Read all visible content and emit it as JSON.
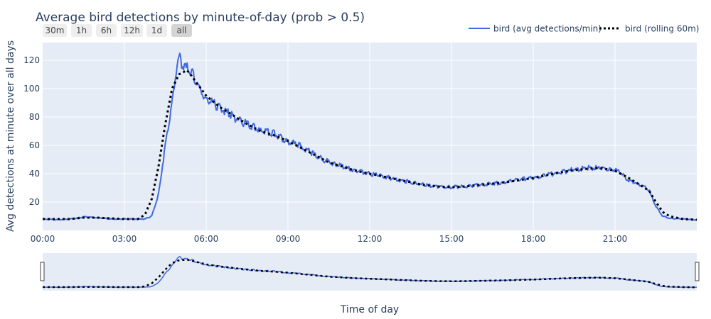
{
  "chart_data": {
    "type": "line",
    "title": "Average bird detections by minute-of-day (prob > 0.5)",
    "xlabel": "Time of day",
    "ylabel": "Avg detections at minute over all days",
    "xlim_hours": [
      0,
      24
    ],
    "ylim": [
      0,
      132.5
    ],
    "x_ticks": [
      "00:00",
      "03:00",
      "06:00",
      "09:00",
      "12:00",
      "15:00",
      "18:00",
      "21:00"
    ],
    "y_ticks": [
      20,
      40,
      60,
      80,
      100,
      120
    ],
    "grid": true,
    "legend_placement": "top-right",
    "range_selector": [
      {
        "label": "30m",
        "active": false
      },
      {
        "label": "1h",
        "active": false
      },
      {
        "label": "6h",
        "active": false
      },
      {
        "label": "12h",
        "active": false
      },
      {
        "label": "1d",
        "active": false
      },
      {
        "label": "all",
        "active": true
      }
    ],
    "series": [
      {
        "name": "bird (avg detections/min)",
        "color": "#4169e1",
        "dash": "solid",
        "x_hours": [
          0,
          0.5,
          1,
          1.5,
          2,
          2.5,
          3,
          3.5,
          3.75,
          4,
          4.25,
          4.5,
          4.75,
          4.92,
          5,
          5.15,
          5.3,
          5.5,
          5.75,
          6,
          6.5,
          7,
          7.5,
          8,
          8.5,
          9,
          9.5,
          10,
          10.5,
          11,
          11.5,
          12,
          12.5,
          13,
          13.5,
          14,
          14.5,
          15,
          15.5,
          16,
          16.5,
          17,
          17.5,
          18,
          18.5,
          19,
          19.5,
          20,
          20.5,
          21,
          21.25,
          21.5,
          22,
          22.25,
          22.5,
          22.75,
          23,
          23.5,
          24
        ],
        "values": [
          8,
          7.5,
          8,
          9.5,
          9,
          8,
          8,
          8,
          8,
          10,
          25,
          60,
          90,
          115,
          122,
          116,
          114,
          110,
          100,
          92,
          87,
          80,
          75,
          70,
          68,
          63,
          59,
          53,
          48,
          45,
          42,
          40,
          38,
          36,
          34,
          32,
          31,
          30.5,
          31,
          32,
          33,
          34,
          36,
          37,
          39,
          41,
          43,
          44,
          44,
          43,
          40,
          35,
          32,
          28,
          17,
          10,
          8.5,
          8,
          7.5
        ]
      },
      {
        "name": "bird (rolling 60m)",
        "color": "#000000",
        "dash": "dot",
        "x_hours": [
          0,
          0.5,
          1,
          1.5,
          2,
          2.5,
          3,
          3.5,
          3.75,
          4,
          4.25,
          4.5,
          4.75,
          5,
          5.3,
          5.5,
          6,
          6.5,
          7,
          7.5,
          8,
          8.5,
          9,
          9.5,
          10,
          10.5,
          11,
          11.5,
          12,
          12.5,
          13,
          13.5,
          14,
          14.5,
          15,
          15.5,
          16,
          16.5,
          17,
          17.5,
          18,
          18.5,
          19,
          19.5,
          20,
          20.5,
          21,
          21.5,
          22,
          22.25,
          22.5,
          22.75,
          23,
          23.5,
          24
        ],
        "values": [
          8,
          8,
          8,
          9,
          9,
          8.5,
          8,
          8,
          11,
          22,
          45,
          75,
          100,
          110,
          113,
          108,
          95,
          87,
          81,
          75,
          70,
          67,
          63,
          58,
          53,
          48,
          45,
          42,
          40,
          38,
          36,
          34,
          32,
          31,
          30.5,
          31,
          32,
          33,
          34,
          35.5,
          37,
          39,
          41,
          42.5,
          43.5,
          44,
          42,
          37,
          31,
          28,
          20,
          13,
          10,
          8,
          7.5
        ]
      }
    ]
  }
}
